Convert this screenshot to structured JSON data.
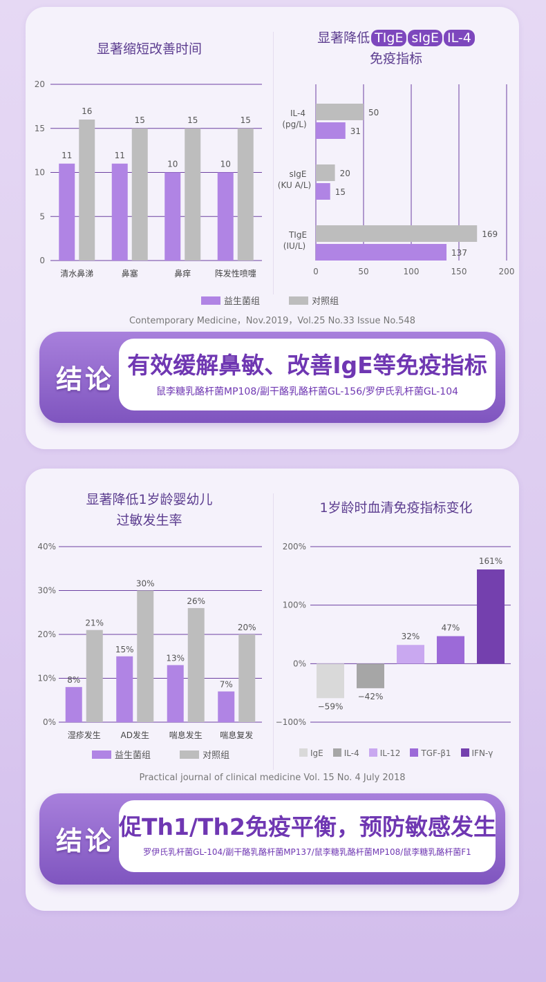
{
  "colors": {
    "probiotic": "#b084e4",
    "control": "#bdbdbd",
    "accent": "#7d47bd",
    "grid": "#6b3fa0"
  },
  "card1": {
    "left_title": "显著缩短改善时间",
    "right_title_prefix": "显著降低",
    "right_title_tags": [
      "TIgE",
      "sIgE",
      "IL-4"
    ],
    "right_title_line2": "免疫指标",
    "legend": [
      "益生菌组",
      "对照组"
    ],
    "source": "Contemporary Medicine，Nov.2019，Vol.25 No.33 Issue No.548",
    "conclusion_tag": "结论",
    "conclusion_main": "有效缓解鼻敏、改善IgE等免疫指标",
    "conclusion_sub": "鼠李糖乳酪杆菌MP108/副干酪乳酪杆菌GL-156/罗伊氏乳杆菌GL-104"
  },
  "card2": {
    "left_title_line1": "显著降低1岁龄婴幼儿",
    "left_title_line2": "过敏发生率",
    "right_title": "1岁龄时血清免疫指标变化",
    "legend": [
      "益生菌组",
      "对照组"
    ],
    "source": "Practical journal of clinical medicine Vol. 15 No. 4 July 2018",
    "conclusion_tag": "结论",
    "conclusion_main": "促Th1/Th2免疫平衡，预防敏感发生",
    "conclusion_sub": "罗伊氏乳杆菌GL-104/副干酪乳酪杆菌MP137/鼠李糖乳酪杆菌MP108/鼠李糖乳酪杆菌F1"
  },
  "chart_data": [
    {
      "type": "bar",
      "categories": [
        "清水鼻涕",
        "鼻塞",
        "鼻痒",
        "阵发性喷嚏"
      ],
      "series": [
        {
          "name": "益生菌组",
          "values": [
            11,
            11,
            10,
            10
          ]
        },
        {
          "name": "对照组",
          "values": [
            16,
            15,
            15,
            15
          ]
        }
      ],
      "yticks": [
        "0",
        "5",
        "10",
        "15",
        "20"
      ],
      "ylim": [
        0,
        20
      ],
      "grid": true,
      "legend": "bottom"
    },
    {
      "type": "bar",
      "orientation": "horizontal",
      "categories": [
        {
          "name": "IL-4",
          "unit": "(pg/L)"
        },
        {
          "name": "sIgE",
          "unit": "(KU A/L)"
        },
        {
          "name": "TIgE",
          "unit": "(IU/L)"
        }
      ],
      "series": [
        {
          "name": "对照组",
          "values": [
            50,
            20,
            169
          ]
        },
        {
          "name": "益生菌组",
          "values": [
            31,
            15,
            137
          ]
        }
      ],
      "xticks": [
        "0",
        "50",
        "100",
        "150",
        "200"
      ],
      "xlim": [
        0,
        200
      ],
      "grid": true
    },
    {
      "type": "bar",
      "categories": [
        "湿疹发生",
        "AD发生",
        "喘息发生",
        "喘息复发"
      ],
      "series": [
        {
          "name": "益生菌组",
          "values": [
            8,
            15,
            13,
            7
          ]
        },
        {
          "name": "对照组",
          "values": [
            21,
            30,
            26,
            20
          ]
        }
      ],
      "yticks": [
        "0%",
        "10%",
        "20%",
        "30%",
        "40%"
      ],
      "ylim": [
        0,
        40
      ],
      "grid": true,
      "legend": "bottom"
    },
    {
      "type": "bar",
      "categories": [
        "IgE",
        "IL-4",
        "IL-12",
        "TGF-β1",
        "IFN-γ"
      ],
      "values": [
        -59,
        -42,
        32,
        47,
        161
      ],
      "labels": [
        "−59%",
        "−42%",
        "32%",
        "47%",
        "161%"
      ],
      "colors": [
        "#d9d9d9",
        "#a6a6a6",
        "#c9a8f0",
        "#9c6ad8",
        "#7440ae"
      ],
      "yticks": [
        "−100%",
        "0%",
        "100%",
        "200%"
      ],
      "ylim": [
        -100,
        200
      ],
      "grid": true,
      "legend": "bottom"
    }
  ]
}
